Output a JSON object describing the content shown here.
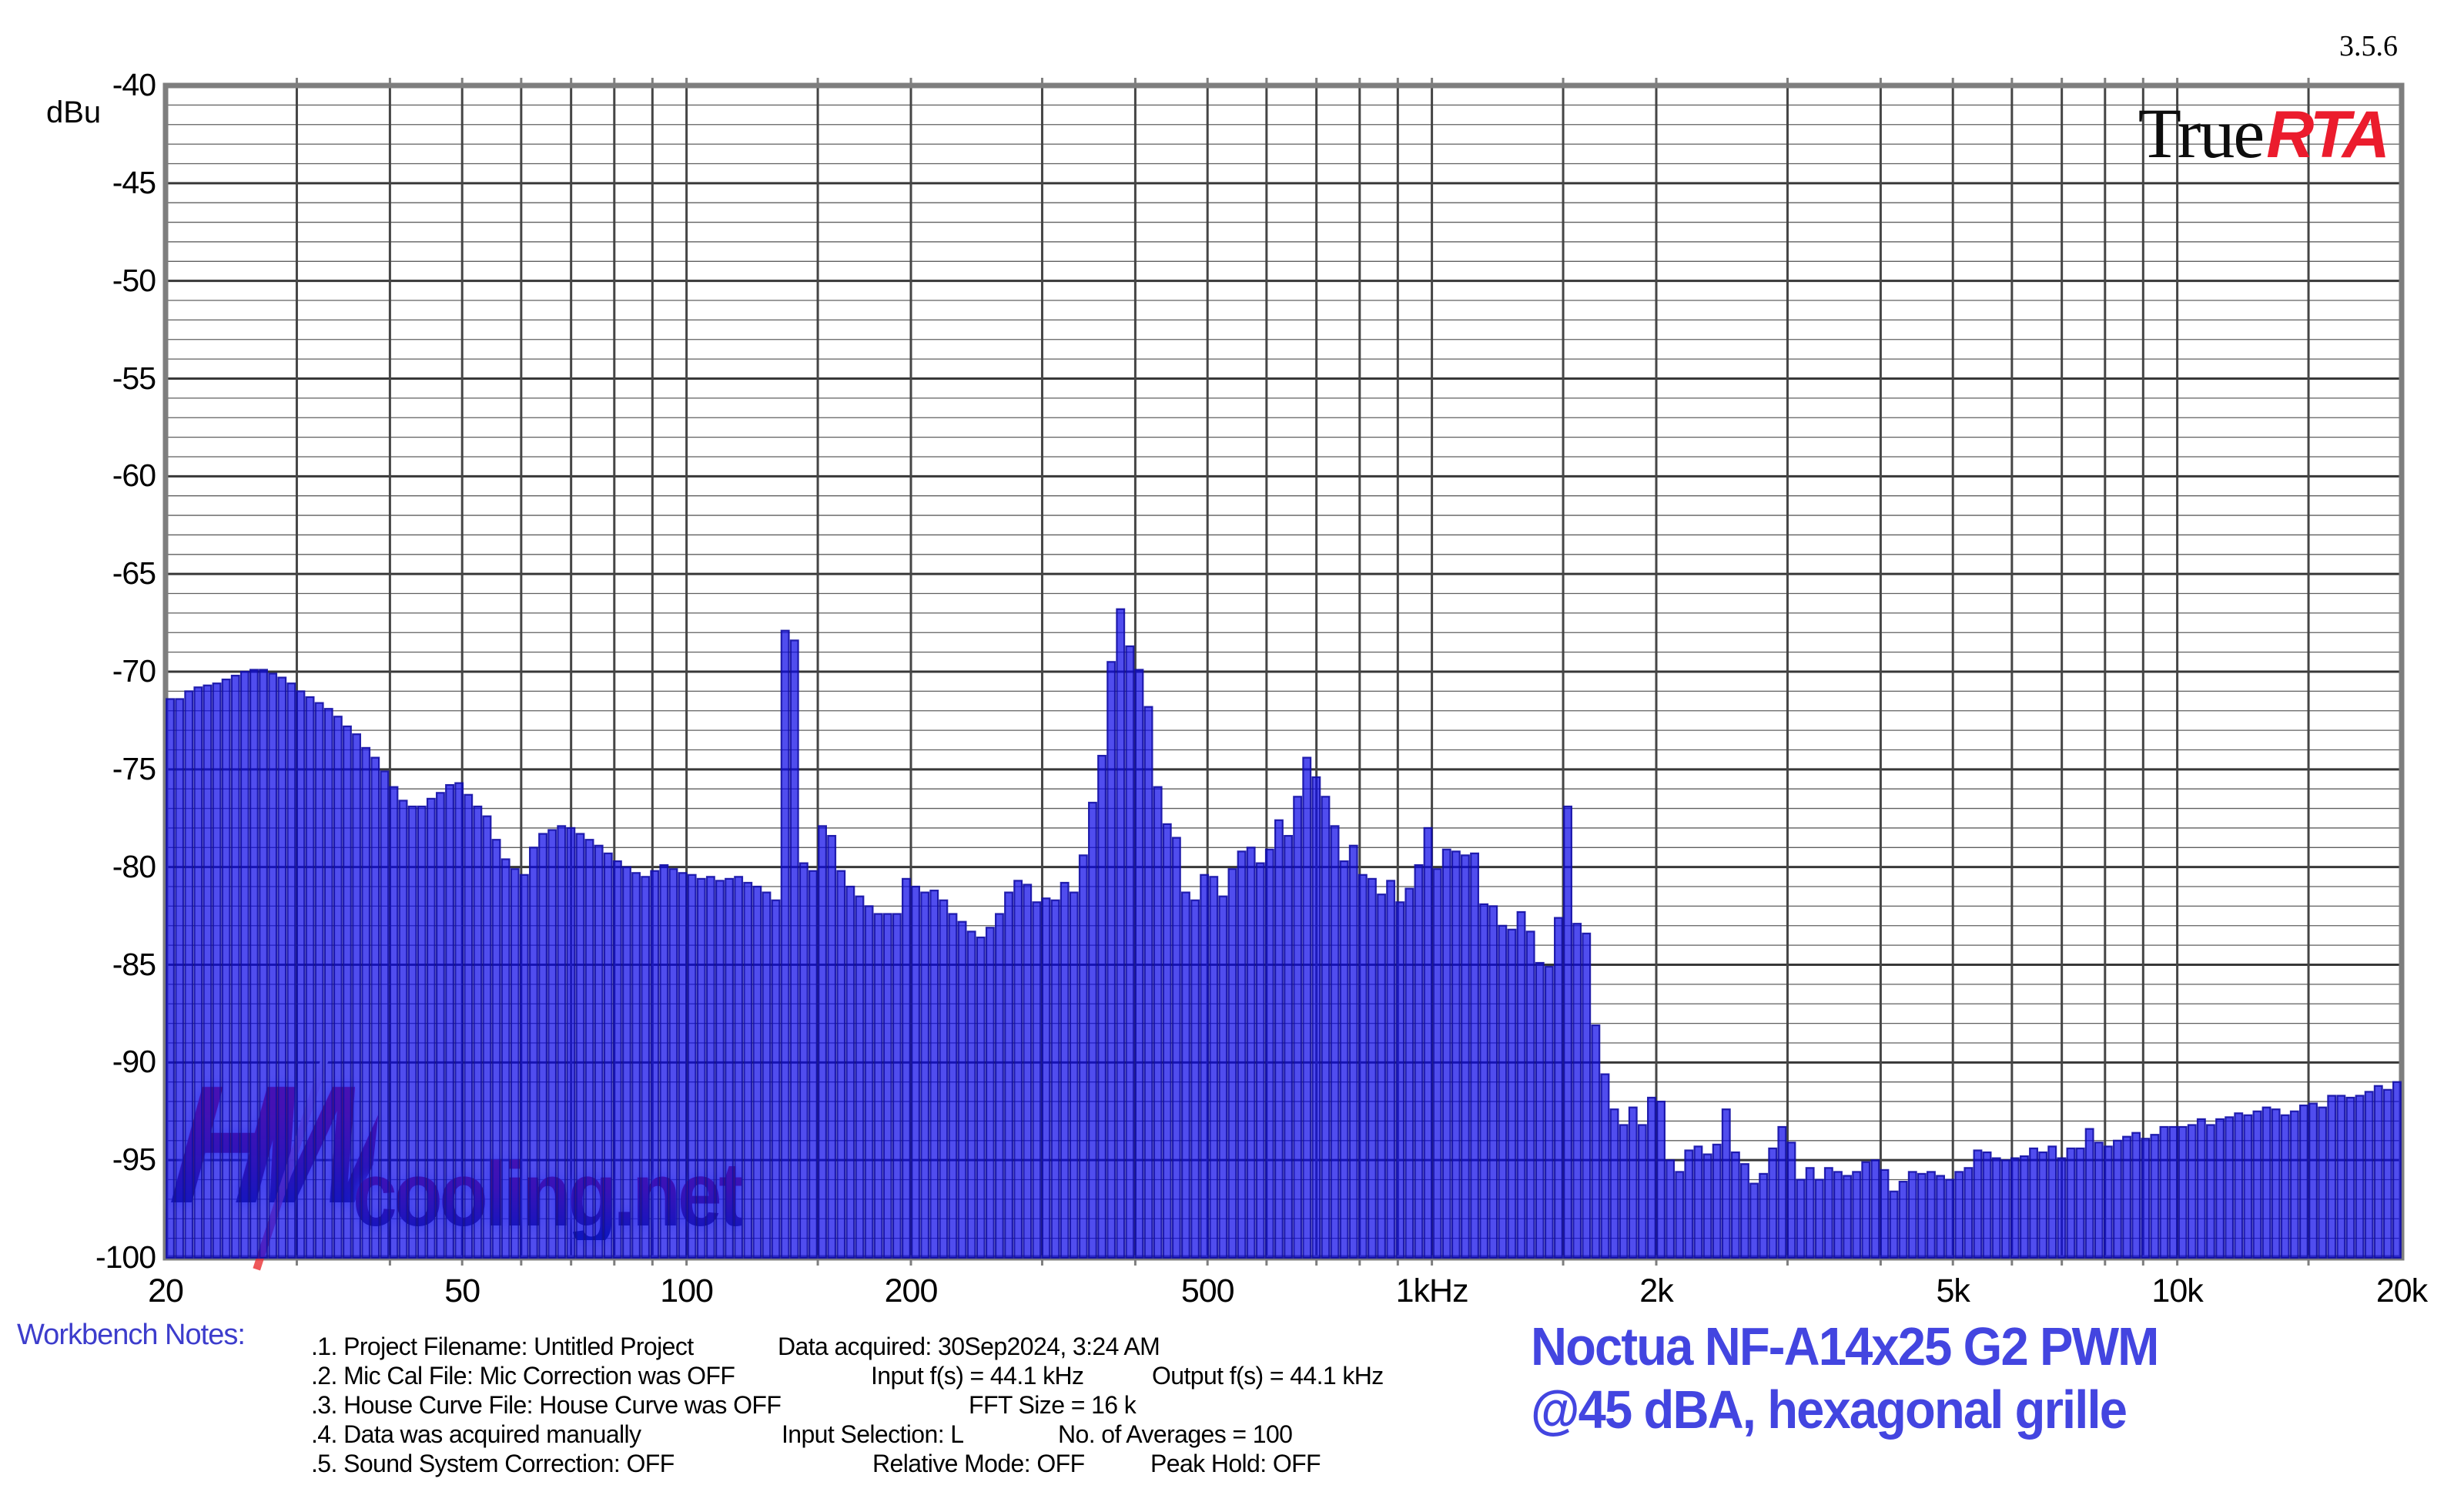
{
  "app": {
    "version": "3.5.6",
    "logo_true": "True",
    "logo_rta": "RTA"
  },
  "colors": {
    "bar_fill": "#0d08e8",
    "bar_fill_opacity": 0.72,
    "bar_stroke": "#120ea5",
    "grid_minor": "#5f5f5f",
    "grid_major": "#383838",
    "grid_vertical": "#454545",
    "plot_border": "#7e7e7e",
    "truerta_red": "#eb1c2d",
    "caption_blue": "#4345e0",
    "notes_blue": "#3d3dcc"
  },
  "axis": {
    "unit_label": "dBu",
    "y_tick_labels": [
      "-40",
      "-45",
      "-50",
      "-55",
      "-60",
      "-65",
      "-70",
      "-75",
      "-80",
      "-85",
      "-90",
      "-95",
      "-100"
    ],
    "x_tick_labels": [
      {
        "f": 20,
        "label": "20"
      },
      {
        "f": 50,
        "label": "50"
      },
      {
        "f": 100,
        "label": "100"
      },
      {
        "f": 200,
        "label": "200"
      },
      {
        "f": 500,
        "label": "500"
      },
      {
        "f": 1000,
        "label": "1kHz"
      },
      {
        "f": 2000,
        "label": "2k"
      },
      {
        "f": 5000,
        "label": "5k"
      },
      {
        "f": 10000,
        "label": "10k"
      },
      {
        "f": 20000,
        "label": "20k"
      }
    ]
  },
  "chart_data": {
    "type": "bar",
    "title": "Noctua NF-A14x25 G2 PWM @45 dBA, hexagonal grille",
    "ylabel": "dBu",
    "ylim": [
      -100,
      -40
    ],
    "xlim_hz": [
      20,
      20000
    ],
    "x_scale": "log",
    "grid": {
      "y_minor_step_db": 1,
      "y_major_step_db": 5,
      "vertical_lines_hz": [
        30,
        40,
        50,
        60,
        70,
        80,
        90,
        100,
        150,
        200,
        300,
        400,
        500,
        600,
        700,
        800,
        900,
        1000,
        1500,
        2000,
        3000,
        4000,
        5000,
        6000,
        7000,
        8000,
        9000,
        10000,
        15000
      ]
    },
    "bars_per_octave": 24,
    "n_bars": 240,
    "f_start_hz": 20,
    "note": "bar k frequency = 20 * 2^(k/24) Hz",
    "values_dbu": [
      -71.4,
      -71.4,
      -71.0,
      -70.8,
      -70.7,
      -70.6,
      -70.4,
      -70.2,
      -70.0,
      -69.9,
      -69.9,
      -70.1,
      -70.3,
      -70.6,
      -71.0,
      -71.3,
      -71.6,
      -71.9,
      -72.3,
      -72.8,
      -73.2,
      -73.9,
      -74.4,
      -75.1,
      -75.9,
      -76.6,
      -76.9,
      -76.9,
      -76.5,
      -76.2,
      -75.8,
      -75.7,
      -76.3,
      -76.9,
      -77.4,
      -78.6,
      -79.6,
      -80.1,
      -80.4,
      -79.0,
      -78.3,
      -78.1,
      -77.9,
      -78.0,
      -78.3,
      -78.6,
      -78.9,
      -79.3,
      -79.7,
      -80.0,
      -80.3,
      -80.5,
      -80.2,
      -79.9,
      -80.1,
      -80.3,
      -80.4,
      -80.6,
      -80.5,
      -80.7,
      -80.6,
      -80.5,
      -80.8,
      -81.0,
      -81.3,
      -81.7,
      -67.9,
      -68.4,
      -79.8,
      -80.2,
      -77.9,
      -78.4,
      -80.2,
      -81.0,
      -81.5,
      -82.0,
      -82.4,
      -82.4,
      -82.4,
      -80.6,
      -81.0,
      -81.3,
      -81.2,
      -81.7,
      -82.4,
      -82.8,
      -83.3,
      -83.6,
      -83.1,
      -82.4,
      -81.3,
      -80.7,
      -80.9,
      -81.8,
      -81.6,
      -81.7,
      -80.8,
      -81.3,
      -79.4,
      -76.7,
      -74.3,
      -69.5,
      -66.8,
      -68.7,
      -69.9,
      -71.8,
      -75.9,
      -77.8,
      -78.5,
      -81.3,
      -81.7,
      -80.4,
      -80.5,
      -81.5,
      -80.1,
      -79.2,
      -79.0,
      -79.8,
      -79.1,
      -77.6,
      -78.4,
      -76.4,
      -74.4,
      -75.4,
      -76.4,
      -77.9,
      -79.7,
      -78.9,
      -80.4,
      -80.6,
      -81.4,
      -80.7,
      -81.8,
      -81.1,
      -79.9,
      -78.0,
      -80.1,
      -79.1,
      -79.2,
      -79.4,
      -79.3,
      -81.9,
      -82.0,
      -83.0,
      -83.2,
      -82.3,
      -83.3,
      -84.9,
      -85.1,
      -82.6,
      -76.9,
      -82.9,
      -83.4,
      -88.1,
      -90.6,
      -92.4,
      -93.2,
      -92.3,
      -93.2,
      -91.8,
      -92.0,
      -95.0,
      -95.6,
      -94.5,
      -94.3,
      -94.7,
      -94.2,
      -92.4,
      -94.6,
      -95.2,
      -96.2,
      -95.7,
      -94.4,
      -93.3,
      -94.1,
      -96.0,
      -95.4,
      -96.0,
      -95.4,
      -95.6,
      -95.8,
      -95.6,
      -95.1,
      -95.0,
      -95.5,
      -96.6,
      -96.1,
      -95.6,
      -95.7,
      -95.6,
      -95.8,
      -96.0,
      -95.6,
      -95.4,
      -94.5,
      -94.6,
      -94.9,
      -95.0,
      -94.9,
      -94.8,
      -94.4,
      -94.6,
      -94.3,
      -94.9,
      -94.4,
      -94.4,
      -93.4,
      -94.1,
      -94.3,
      -94.0,
      -93.8,
      -93.6,
      -93.9,
      -93.7,
      -93.3,
      -93.3,
      -93.3,
      -93.2,
      -92.9,
      -93.2,
      -92.9,
      -92.8,
      -92.6,
      -92.7,
      -92.5,
      -92.3,
      -92.4,
      -92.7,
      -92.5,
      -92.2,
      -92.1,
      -92.3,
      -91.7,
      -91.7,
      -91.8,
      -91.7,
      -91.5,
      -91.2,
      -91.4,
      -91.0
    ]
  },
  "watermark": {
    "hw": "HW",
    "rest": "cooling.net"
  },
  "notes": {
    "heading": "Workbench Notes:",
    "lines": [
      {
        "a": ".1. Project Filename: Untitled Project",
        "b": "Data acquired: 30Sep2024, 3:24 AM",
        "c": ""
      },
      {
        "a": ".2. Mic Cal File: Mic Correction was OFF",
        "b": "Input f(s) = 44.1 kHz",
        "c": "Output f(s) = 44.1 kHz"
      },
      {
        "a": ".3. House Curve File: House Curve was OFF",
        "b": "FFT Size = 16 k",
        "c": ""
      },
      {
        "a": ".4. Data was acquired manually",
        "b": "Input Selection: L",
        "c": "No. of Averages = 100"
      },
      {
        "a": ".5. Sound System Correction: OFF",
        "b": "Relative Mode:  OFF",
        "c": "Peak Hold: OFF"
      }
    ]
  },
  "caption": {
    "line1": "Noctua NF-A14x25 G2 PWM",
    "line2": "@45 dBA, hexagonal grille"
  }
}
